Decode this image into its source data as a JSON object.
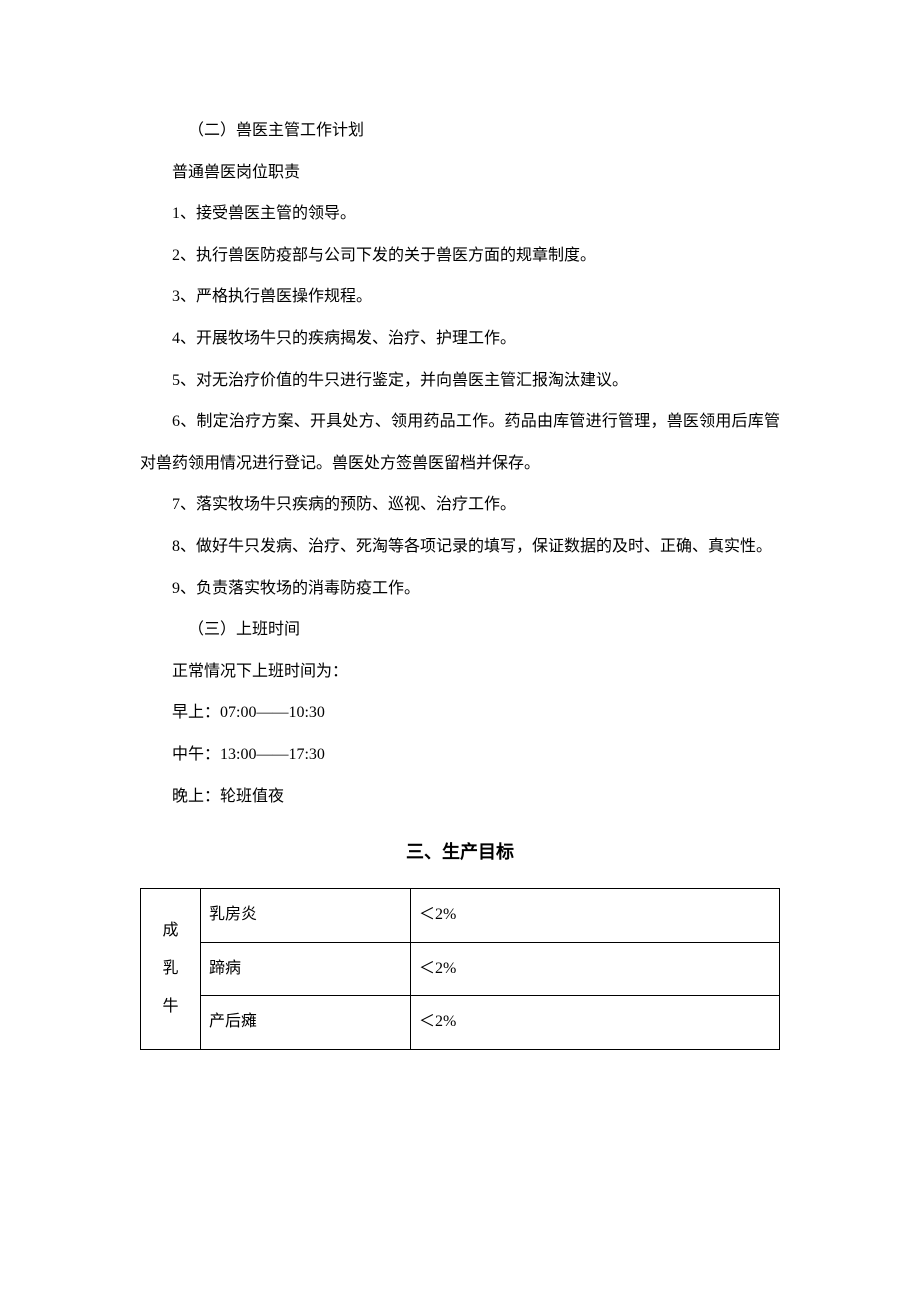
{
  "section2": {
    "title": "（二）兽医主管工作计划",
    "subtitle": "普通兽医岗位职责",
    "items": [
      "1、接受兽医主管的领导。",
      "2、执行兽医防疫部与公司下发的关于兽医方面的规章制度。",
      "3、严格执行兽医操作规程。",
      "4、开展牧场牛只的疾病揭发、治疗、护理工作。",
      "5、对无治疗价值的牛只进行鉴定，并向兽医主管汇报淘汰建议。",
      "6、制定治疗方案、开具处方、领用药品工作。药品由库管进行管理，兽医领用后库管对兽药领用情况进行登记。兽医处方签兽医留档并保存。",
      "7、落实牧场牛只疾病的预防、巡视、治疗工作。",
      "8、做好牛只发病、治疗、死淘等各项记录的填写，保证数据的及时、正确、真实性。",
      "9、负责落实牧场的消毒防疫工作。"
    ]
  },
  "section3": {
    "title": "（三）上班时间",
    "intro": "正常情况下上班时间为：",
    "schedule": [
      "早上：07:00——10:30",
      "中午：13:00——17:30",
      "晚上：轮班值夜"
    ]
  },
  "heading3": "三、生产目标",
  "table": {
    "category": "成乳牛",
    "categoryChars": [
      "成",
      "乳",
      "牛"
    ],
    "rows": [
      {
        "disease": "乳房炎",
        "target": "＜2%"
      },
      {
        "disease": "蹄病",
        "target": "＜2%"
      },
      {
        "disease": "产后瘫",
        "target": "＜2%"
      }
    ]
  }
}
